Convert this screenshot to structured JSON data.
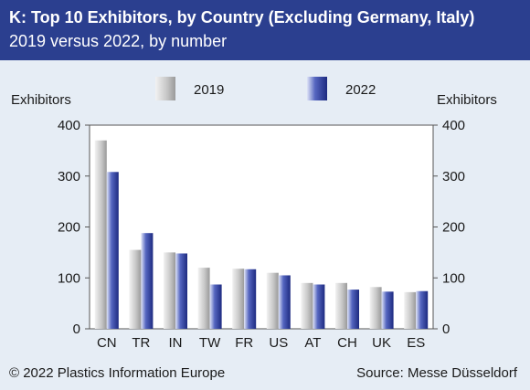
{
  "header": {
    "title": "K: Top 10 Exhibitors, by Country (Excluding Germany, Italy)",
    "subtitle": "2019 versus 2022, by number"
  },
  "footer": {
    "copyright": "© 2022 Plastics Information Europe",
    "source": "Source: Messe Düsseldorf"
  },
  "chart_data": {
    "type": "bar",
    "categories": [
      "CN",
      "TR",
      "IN",
      "TW",
      "FR",
      "US",
      "AT",
      "CH",
      "UK",
      "ES"
    ],
    "series": [
      {
        "name": "2019",
        "color": "#bdbdbd",
        "values": [
          370,
          155,
          150,
          120,
          118,
          110,
          90,
          90,
          82,
          72
        ]
      },
      {
        "name": "2022",
        "color": "#2e3f9c",
        "values": [
          308,
          188,
          148,
          87,
          117,
          105,
          87,
          77,
          73,
          74
        ]
      }
    ],
    "ylabel_left": "Exhibitors",
    "ylabel_right": "Exhibitors",
    "ylim": [
      0,
      400
    ],
    "yticks": [
      0,
      100,
      200,
      300,
      400
    ],
    "grid": false,
    "legend": "top"
  }
}
